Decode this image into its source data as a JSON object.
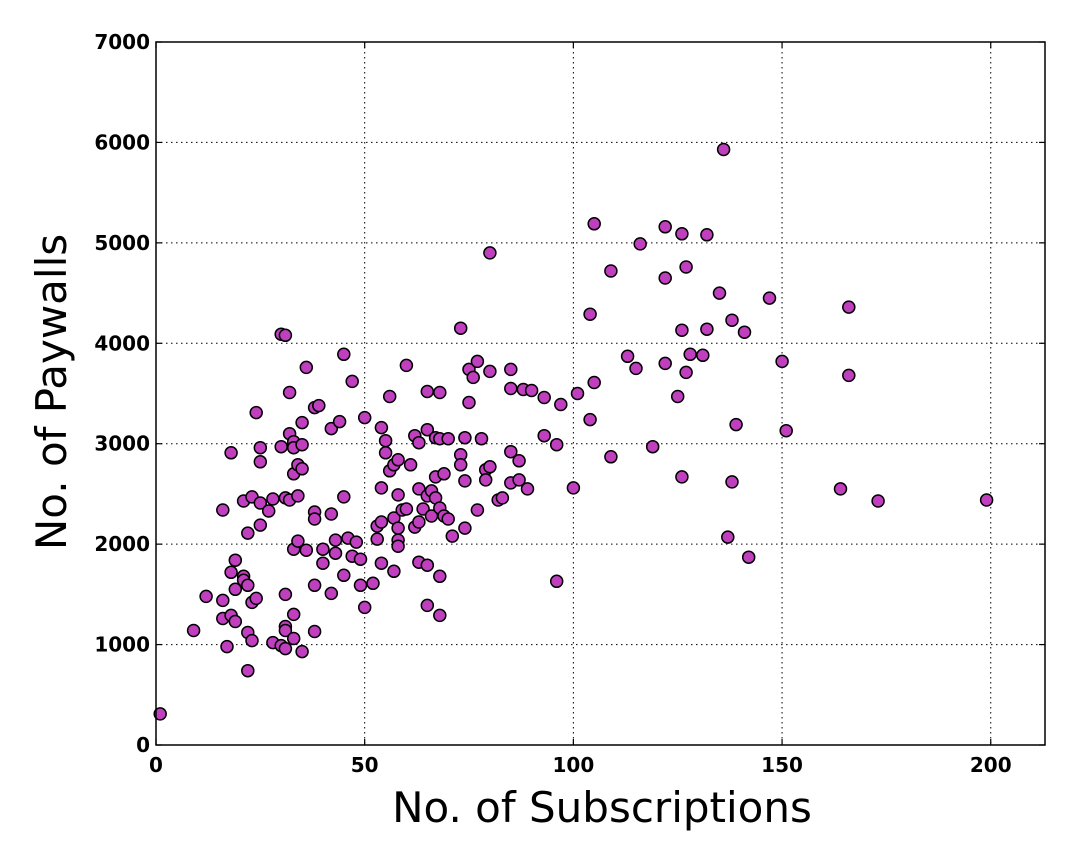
{
  "chart_data": {
    "type": "scatter",
    "title": "",
    "xlabel": "No. of Subscriptions",
    "ylabel": "No. of Paywalls",
    "xlim": [
      0,
      213
    ],
    "ylim": [
      0,
      7000
    ],
    "x_ticks": [
      0,
      50,
      100,
      150,
      200
    ],
    "y_ticks": [
      0,
      1000,
      2000,
      3000,
      4000,
      5000,
      6000,
      7000
    ],
    "x_tick_labels": [
      "0",
      "50",
      "100",
      "150",
      "200"
    ],
    "y_tick_labels": [
      "0",
      "1000",
      "2000",
      "3000",
      "4000",
      "5000",
      "6000",
      "7000"
    ],
    "grid": true,
    "legend": "none",
    "colors": {
      "point_fill": "#bf3fbf",
      "point_edge": "#000000",
      "grid": "#000000",
      "background": "#ffffff"
    },
    "series": [
      {
        "points": [
          [
            1,
            310
          ],
          [
            9,
            1140
          ],
          [
            12,
            1480
          ],
          [
            16,
            1440
          ],
          [
            16,
            1260
          ],
          [
            16,
            2340
          ],
          [
            17,
            980
          ],
          [
            18,
            1720
          ],
          [
            18,
            1290
          ],
          [
            18,
            2910
          ],
          [
            19,
            1840
          ],
          [
            19,
            1550
          ],
          [
            19,
            1230
          ],
          [
            21,
            1680
          ],
          [
            21,
            1640
          ],
          [
            21,
            2430
          ],
          [
            22,
            1590
          ],
          [
            22,
            1120
          ],
          [
            22,
            740
          ],
          [
            22,
            2110
          ],
          [
            23,
            1040
          ],
          [
            23,
            1420
          ],
          [
            23,
            2470
          ],
          [
            24,
            1460
          ],
          [
            24,
            3310
          ],
          [
            25,
            2190
          ],
          [
            25,
            2820
          ],
          [
            25,
            2960
          ],
          [
            25,
            2410
          ],
          [
            27,
            2330
          ],
          [
            28,
            2450
          ],
          [
            28,
            1020
          ],
          [
            30,
            4090
          ],
          [
            30,
            2970
          ],
          [
            30,
            990
          ],
          [
            31,
            4080
          ],
          [
            31,
            1500
          ],
          [
            31,
            1180
          ],
          [
            31,
            1140
          ],
          [
            31,
            960
          ],
          [
            31,
            2460
          ],
          [
            32,
            3510
          ],
          [
            32,
            3100
          ],
          [
            32,
            2440
          ],
          [
            33,
            3020
          ],
          [
            33,
            2960
          ],
          [
            33,
            1950
          ],
          [
            33,
            1300
          ],
          [
            33,
            1060
          ],
          [
            33,
            2700
          ],
          [
            34,
            2790
          ],
          [
            34,
            2480
          ],
          [
            34,
            2030
          ],
          [
            35,
            3210
          ],
          [
            35,
            2990
          ],
          [
            35,
            2750
          ],
          [
            35,
            930
          ],
          [
            36,
            3760
          ],
          [
            36,
            1940
          ],
          [
            38,
            3360
          ],
          [
            38,
            2320
          ],
          [
            38,
            2250
          ],
          [
            38,
            1590
          ],
          [
            38,
            1130
          ],
          [
            39,
            3380
          ],
          [
            40,
            1950
          ],
          [
            40,
            1810
          ],
          [
            42,
            3150
          ],
          [
            42,
            2300
          ],
          [
            42,
            1510
          ],
          [
            43,
            1910
          ],
          [
            43,
            2040
          ],
          [
            44,
            3220
          ],
          [
            45,
            3890
          ],
          [
            45,
            2470
          ],
          [
            45,
            1690
          ],
          [
            46,
            2060
          ],
          [
            47,
            3620
          ],
          [
            47,
            1880
          ],
          [
            48,
            2020
          ],
          [
            49,
            1590
          ],
          [
            49,
            1850
          ],
          [
            50,
            3260
          ],
          [
            50,
            1370
          ],
          [
            52,
            1610
          ],
          [
            53,
            2050
          ],
          [
            53,
            2180
          ],
          [
            54,
            3160
          ],
          [
            54,
            2560
          ],
          [
            54,
            2220
          ],
          [
            54,
            1810
          ],
          [
            55,
            3030
          ],
          [
            55,
            2910
          ],
          [
            56,
            3470
          ],
          [
            56,
            2730
          ],
          [
            57,
            2790
          ],
          [
            57,
            2260
          ],
          [
            57,
            1730
          ],
          [
            58,
            2840
          ],
          [
            58,
            2490
          ],
          [
            58,
            2160
          ],
          [
            58,
            2040
          ],
          [
            58,
            1980
          ],
          [
            59,
            2340
          ],
          [
            60,
            3780
          ],
          [
            60,
            2350
          ],
          [
            61,
            2790
          ],
          [
            62,
            3080
          ],
          [
            62,
            2170
          ],
          [
            63,
            3010
          ],
          [
            63,
            2550
          ],
          [
            63,
            2220
          ],
          [
            63,
            1820
          ],
          [
            64,
            2350
          ],
          [
            65,
            3520
          ],
          [
            65,
            3140
          ],
          [
            65,
            2480
          ],
          [
            65,
            1790
          ],
          [
            65,
            1390
          ],
          [
            66,
            2530
          ],
          [
            66,
            2280
          ],
          [
            67,
            3060
          ],
          [
            67,
            2670
          ],
          [
            67,
            2460
          ],
          [
            68,
            3510
          ],
          [
            68,
            3050
          ],
          [
            68,
            2360
          ],
          [
            68,
            1680
          ],
          [
            68,
            1290
          ],
          [
            69,
            2700
          ],
          [
            69,
            2280
          ],
          [
            70,
            3050
          ],
          [
            70,
            2250
          ],
          [
            71,
            2080
          ],
          [
            73,
            4150
          ],
          [
            73,
            2890
          ],
          [
            73,
            2790
          ],
          [
            74,
            3060
          ],
          [
            74,
            2630
          ],
          [
            74,
            2160
          ],
          [
            75,
            3740
          ],
          [
            75,
            3410
          ],
          [
            76,
            3660
          ],
          [
            77,
            3820
          ],
          [
            77,
            2340
          ],
          [
            78,
            3050
          ],
          [
            79,
            2740
          ],
          [
            79,
            2640
          ],
          [
            80,
            4900
          ],
          [
            80,
            3720
          ],
          [
            80,
            2770
          ],
          [
            82,
            2440
          ],
          [
            83,
            2460
          ],
          [
            85,
            3740
          ],
          [
            85,
            3550
          ],
          [
            85,
            2920
          ],
          [
            85,
            2610
          ],
          [
            87,
            2830
          ],
          [
            87,
            2640
          ],
          [
            88,
            3540
          ],
          [
            89,
            2550
          ],
          [
            90,
            3530
          ],
          [
            93,
            3460
          ],
          [
            93,
            3080
          ],
          [
            96,
            2990
          ],
          [
            96,
            1630
          ],
          [
            97,
            3390
          ],
          [
            100,
            2560
          ],
          [
            101,
            3500
          ],
          [
            104,
            4290
          ],
          [
            104,
            3240
          ],
          [
            105,
            5190
          ],
          [
            105,
            3610
          ],
          [
            109,
            4720
          ],
          [
            109,
            2870
          ],
          [
            113,
            3870
          ],
          [
            115,
            3750
          ],
          [
            116,
            4990
          ],
          [
            119,
            2970
          ],
          [
            122,
            5160
          ],
          [
            122,
            4650
          ],
          [
            122,
            3800
          ],
          [
            125,
            3470
          ],
          [
            126,
            5090
          ],
          [
            126,
            4130
          ],
          [
            126,
            2670
          ],
          [
            127,
            4760
          ],
          [
            127,
            3710
          ],
          [
            128,
            3890
          ],
          [
            131,
            3880
          ],
          [
            132,
            5080
          ],
          [
            132,
            4140
          ],
          [
            135,
            4500
          ],
          [
            136,
            5930
          ],
          [
            137,
            2070
          ],
          [
            138,
            4230
          ],
          [
            138,
            2620
          ],
          [
            139,
            3190
          ],
          [
            141,
            4110
          ],
          [
            142,
            1870
          ],
          [
            147,
            4450
          ],
          [
            150,
            3820
          ],
          [
            151,
            3130
          ],
          [
            164,
            2550
          ],
          [
            166,
            4360
          ],
          [
            166,
            3680
          ],
          [
            173,
            2430
          ],
          [
            199,
            2440
          ]
        ]
      }
    ]
  }
}
